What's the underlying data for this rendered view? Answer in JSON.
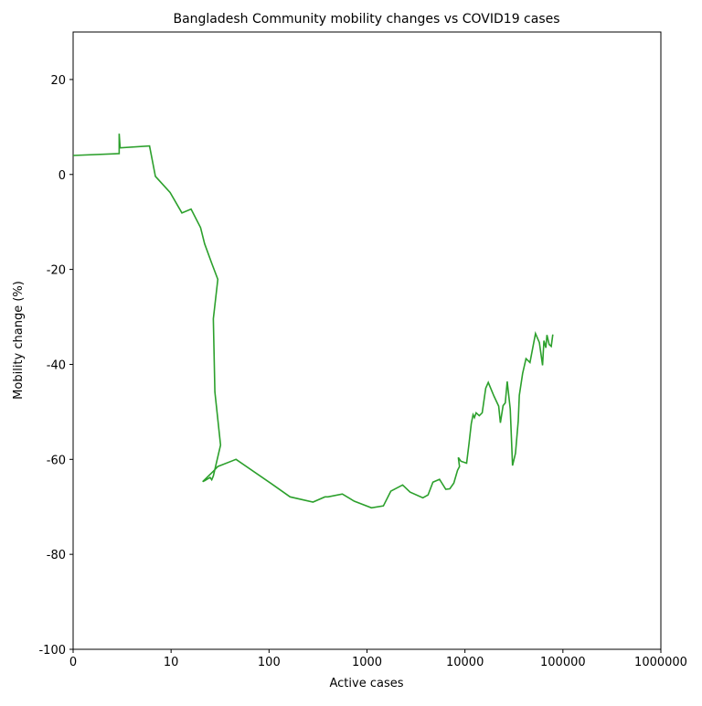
{
  "chart_data": {
    "type": "line",
    "title": "Bangladesh Community mobility changes vs COVID19 cases",
    "xlabel": "Active cases",
    "ylabel": "Mobility change (%)",
    "xscale": "symlog",
    "linthresh": 10,
    "xlim": [
      0,
      1000000
    ],
    "ylim": [
      -100,
      30
    ],
    "xticks": [
      0,
      10,
      100,
      1000,
      10000,
      100000,
      1000000
    ],
    "yticks": [
      -100,
      -80,
      -60,
      -40,
      -20,
      0,
      20
    ],
    "grid": false,
    "series": [
      {
        "color": "#2ca02c",
        "x": [
          0,
          4.7,
          4.7,
          4.8,
          7.8,
          8.4,
          9.9,
          12.9,
          16,
          20,
          22,
          26,
          30,
          27,
          28,
          32,
          27,
          26,
          25,
          22,
          21,
          27,
          30,
          46,
          107,
          164,
          281,
          372,
          400,
          560,
          740,
          1110,
          1470,
          1750,
          2310,
          2750,
          3720,
          4200,
          4710,
          5500,
          6370,
          7000,
          7700,
          8400,
          8800,
          8550,
          9100,
          10400,
          11000,
          11600,
          12100,
          12500,
          13000,
          14000,
          15000,
          16300,
          17300,
          19800,
          22100,
          23000,
          24500,
          25800,
          27000,
          29000,
          30600,
          32800,
          35000,
          35900,
          38800,
          42000,
          46100,
          52500,
          57500,
          62000,
          64000,
          67000,
          68700,
          72400,
          76000,
          78900
        ],
        "values": [
          4.0,
          4.4,
          8.6,
          5.6,
          6.0,
          -0.4,
          -3.8,
          -8.1,
          -7.3,
          -11.2,
          -14.6,
          -18.7,
          -22.1,
          -30.4,
          -45.8,
          -57,
          -63.5,
          -64.3,
          -63.8,
          -64.5,
          -64.7,
          -62.5,
          -61.5,
          -60,
          -65.2,
          -67.9,
          -69,
          -67.9,
          -67.9,
          -67.3,
          -68.8,
          -70.2,
          -69.8,
          -66.7,
          -65.4,
          -66.9,
          -68.1,
          -67.5,
          -64.8,
          -64.2,
          -66.3,
          -66.2,
          -65,
          -62.3,
          -61.5,
          -59.6,
          -60.4,
          -60.8,
          -56.7,
          -52.5,
          -50.6,
          -51.2,
          -50.2,
          -50.8,
          -50.2,
          -45,
          -43.8,
          -46.7,
          -48.8,
          -52.3,
          -48.7,
          -48.1,
          -43.6,
          -49.4,
          -61.3,
          -58.7,
          -51.9,
          -46.5,
          -41.9,
          -38.8,
          -39.6,
          -33.5,
          -35.4,
          -40.2,
          -35,
          -36.5,
          -33.8,
          -35.8,
          -36.2,
          -33.7
        ]
      }
    ]
  }
}
